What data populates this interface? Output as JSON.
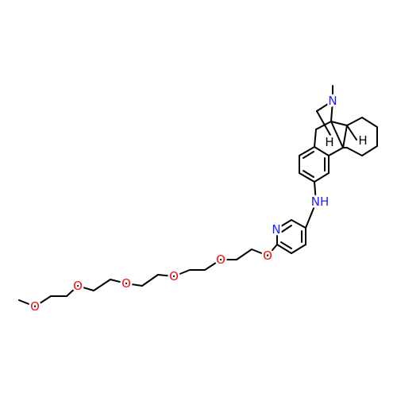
{
  "labels": [
    "N",
    "H",
    "H",
    "NH",
    "N",
    "O",
    "O",
    "O",
    "O",
    "O",
    "O"
  ]
}
